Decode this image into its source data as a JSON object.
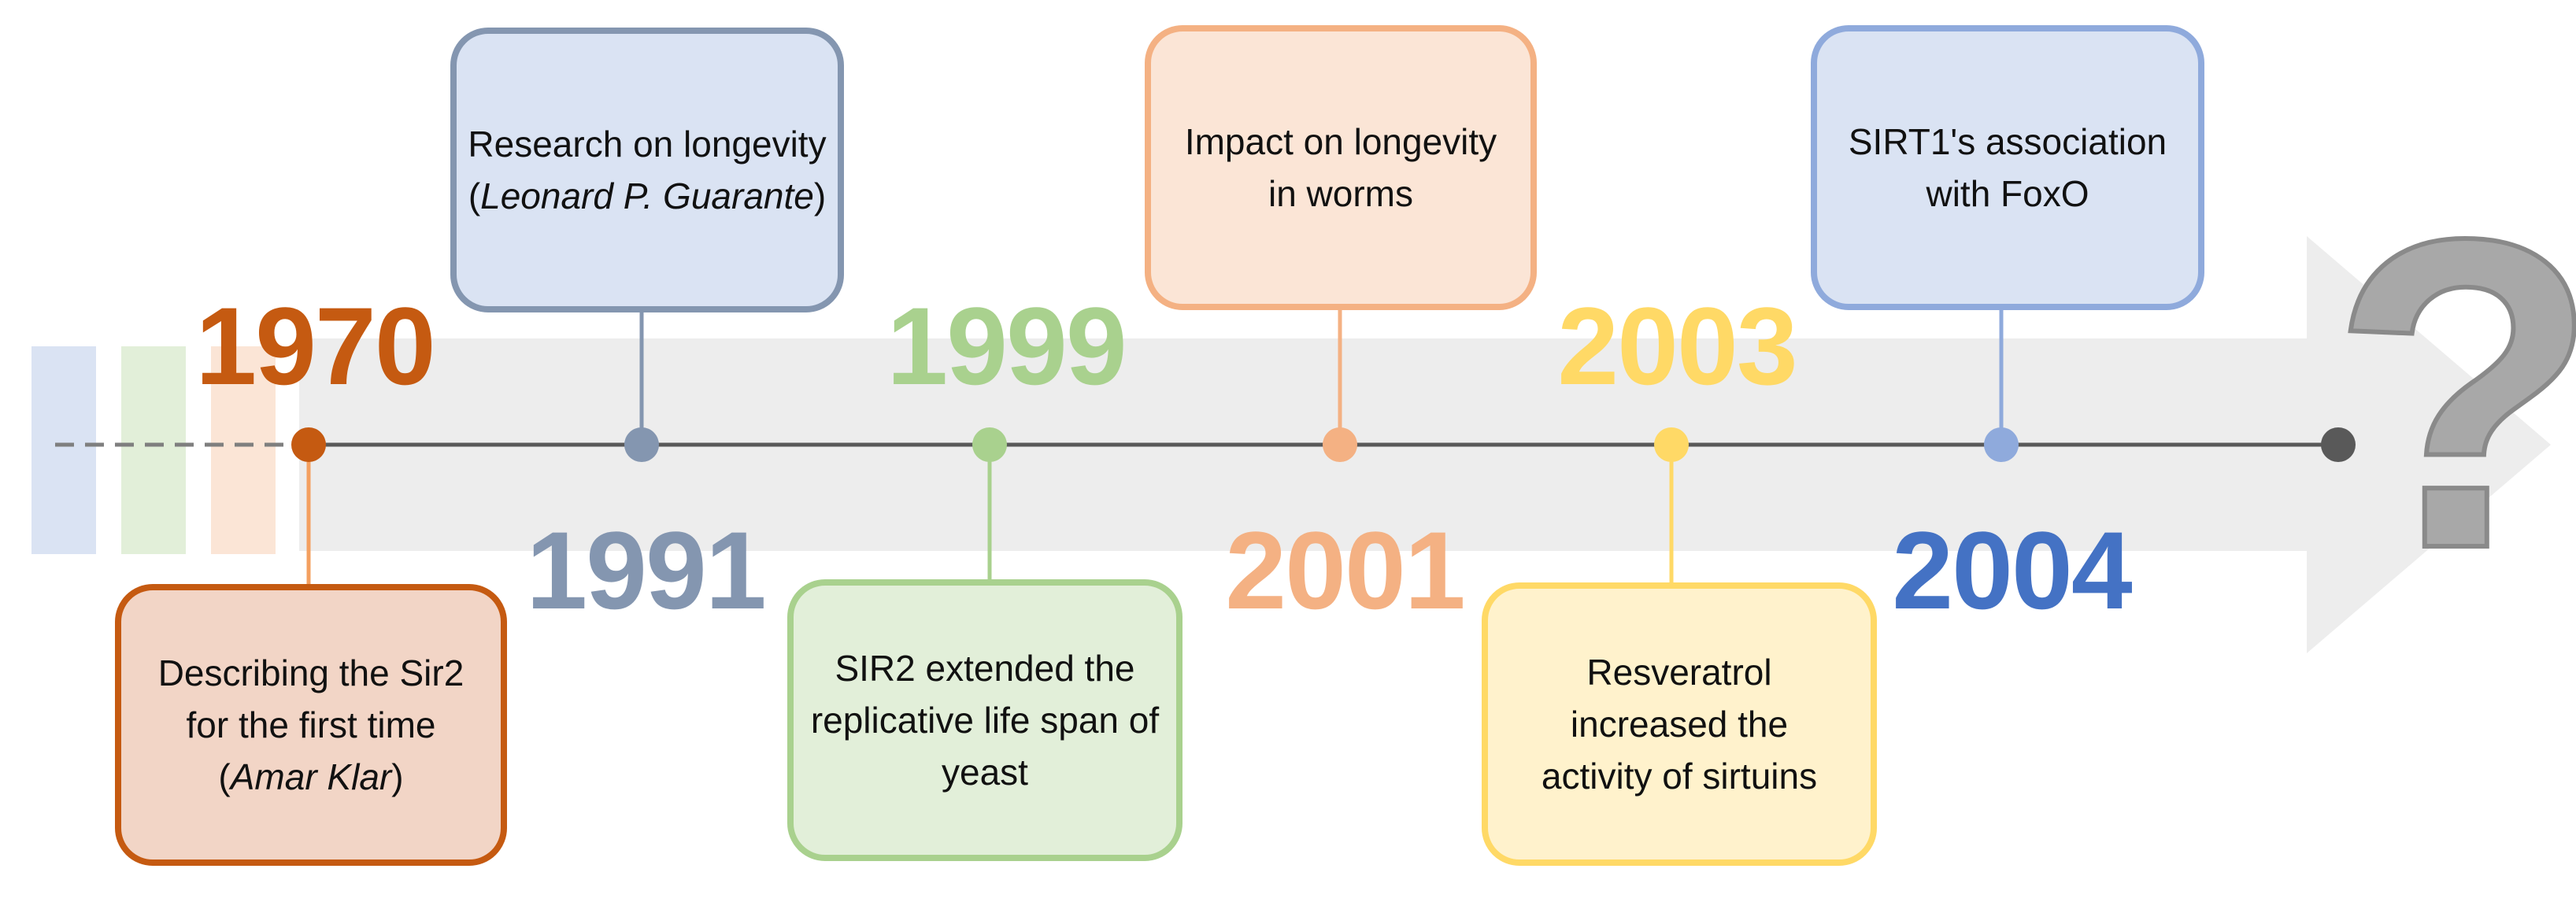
{
  "colors": {
    "y1970": "#c55a11",
    "y1991": "#8496b0",
    "y1999": "#a9d18e",
    "y2001": "#f4b183",
    "y2003": "#ffd966",
    "y2004": "#4472c4",
    "axis": "#595959",
    "arrow": "#ededed",
    "question": "#a6a6a6"
  },
  "years": {
    "y1970": "1970",
    "y1991": "1991",
    "y1999": "1999",
    "y2001": "2001",
    "y2003": "2003",
    "y2004": "2004"
  },
  "events": {
    "e1970": {
      "line1": "Describing the Sir2",
      "line2": "for the first time",
      "name_open": "(",
      "name": "Amar Klar",
      "name_close": ")"
    },
    "e1991": {
      "line1": "Research on longevity",
      "name_open": "(",
      "name": "Leonard P. Guarante",
      "name_close": ")"
    },
    "e1999": {
      "line1": "SIR2 extended the",
      "line2": "replicative life span of",
      "line3": "yeast"
    },
    "e2001": {
      "line1": "Impact on longevity",
      "line2": "in worms"
    },
    "e2003": {
      "line1": "Resveratrol",
      "line2": "increased the",
      "line3": "activity of sirtuins"
    },
    "e2004": {
      "line1": "SIRT1's association",
      "line2": "with FoxO"
    }
  },
  "future": {
    "symbol": "?"
  }
}
